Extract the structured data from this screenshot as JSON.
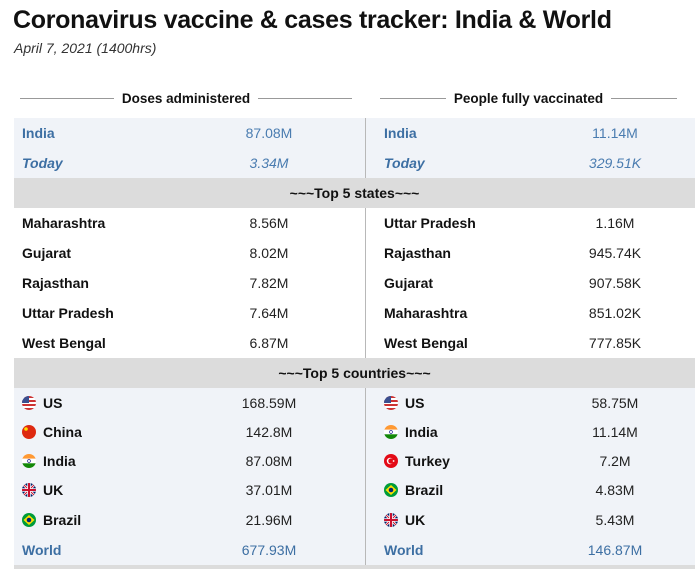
{
  "title": "Coronavirus vaccine & cases tracker: India & World",
  "subtitle": "April 7, 2021 (1400hrs)",
  "headers": {
    "doses": "Doses administered",
    "fully": "People fully vaccinated"
  },
  "summary": [
    {
      "left_label": "India",
      "left_value": "87.08M",
      "right_label": "India",
      "right_value": "11.14M"
    },
    {
      "left_label": "Today",
      "left_value": "3.34M",
      "right_label": "Today",
      "right_value": "329.51K"
    }
  ],
  "states_title": "~~~Top 5 states~~~",
  "states": [
    {
      "left_label": "Maharashtra",
      "left_value": "8.56M",
      "right_label": "Uttar Pradesh",
      "right_value": "1.16M"
    },
    {
      "left_label": "Gujarat",
      "left_value": "8.02M",
      "right_label": "Rajasthan",
      "right_value": "945.74K"
    },
    {
      "left_label": "Rajasthan",
      "left_value": "7.82M",
      "right_label": "Gujarat",
      "right_value": "907.58K"
    },
    {
      "left_label": "Uttar Pradesh",
      "left_value": "7.64M",
      "right_label": "Maharashtra",
      "right_value": "851.02K"
    },
    {
      "left_label": "West Bengal",
      "left_value": "6.87M",
      "right_label": "West Bengal",
      "right_value": "777.85K"
    }
  ],
  "countries_title": "~~~Top 5 countries~~~",
  "countries": [
    {
      "left_flag": "us-flag-icon",
      "left_label": "US",
      "left_value": "168.59M",
      "right_flag": "us-flag-icon",
      "right_label": "US",
      "right_value": "58.75M"
    },
    {
      "left_flag": "china-flag-icon",
      "left_label": "China",
      "left_value": "142.8M",
      "right_flag": "india-flag-icon",
      "right_label": "India",
      "right_value": "11.14M"
    },
    {
      "left_flag": "india-flag-icon",
      "left_label": "India",
      "left_value": "87.08M",
      "right_flag": "turkey-flag-icon",
      "right_label": "Turkey",
      "right_value": "7.2M"
    },
    {
      "left_flag": "uk-flag-icon",
      "left_label": "UK",
      "left_value": "37.01M",
      "right_flag": "brazil-flag-icon",
      "right_label": "Brazil",
      "right_value": "4.83M"
    },
    {
      "left_flag": "brazil-flag-icon",
      "left_label": "Brazil",
      "left_value": "21.96M",
      "right_flag": "uk-flag-icon",
      "right_label": "UK",
      "right_value": "5.43M"
    }
  ],
  "world": {
    "left_label": "World",
    "left_value": "677.93M",
    "right_label": "World",
    "right_value": "146.87M"
  }
}
